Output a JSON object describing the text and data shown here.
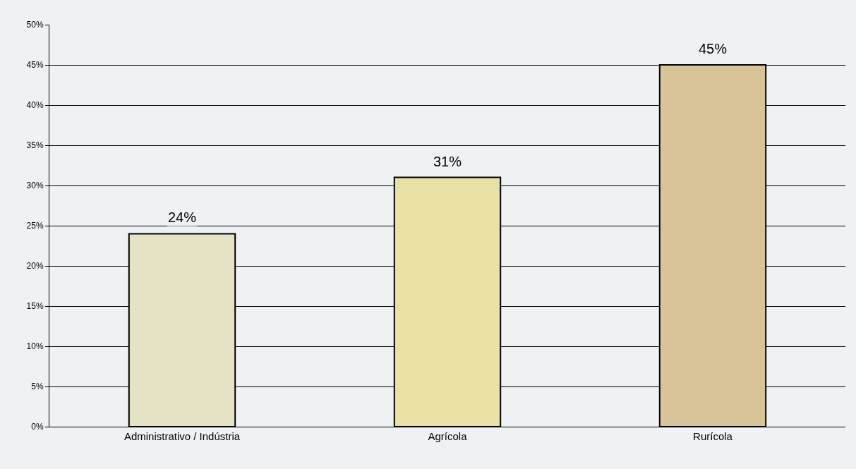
{
  "chart_data": {
    "type": "bar",
    "categories": [
      "Administrativo / Indústria",
      "Agrícola",
      "Rurícola"
    ],
    "values": [
      24,
      31,
      45
    ],
    "value_labels": [
      "24%",
      "31%",
      "45%"
    ],
    "colors": [
      "#e6e2c4",
      "#e8e0a4",
      "#d9c49a"
    ],
    "ylim": [
      0,
      50
    ],
    "yticks": [
      {
        "value": 0,
        "label": "0%"
      },
      {
        "value": 5,
        "label": "5%"
      },
      {
        "value": 10,
        "label": "10%"
      },
      {
        "value": 15,
        "label": "15%"
      },
      {
        "value": 20,
        "label": "20%"
      },
      {
        "value": 25,
        "label": "25%"
      },
      {
        "value": 30,
        "label": "30%"
      },
      {
        "value": 35,
        "label": "35%"
      },
      {
        "value": 40,
        "label": "40%"
      },
      {
        "value": 45,
        "label": "45%"
      },
      {
        "value": 50,
        "label": "50%"
      }
    ],
    "grid": "y"
  }
}
